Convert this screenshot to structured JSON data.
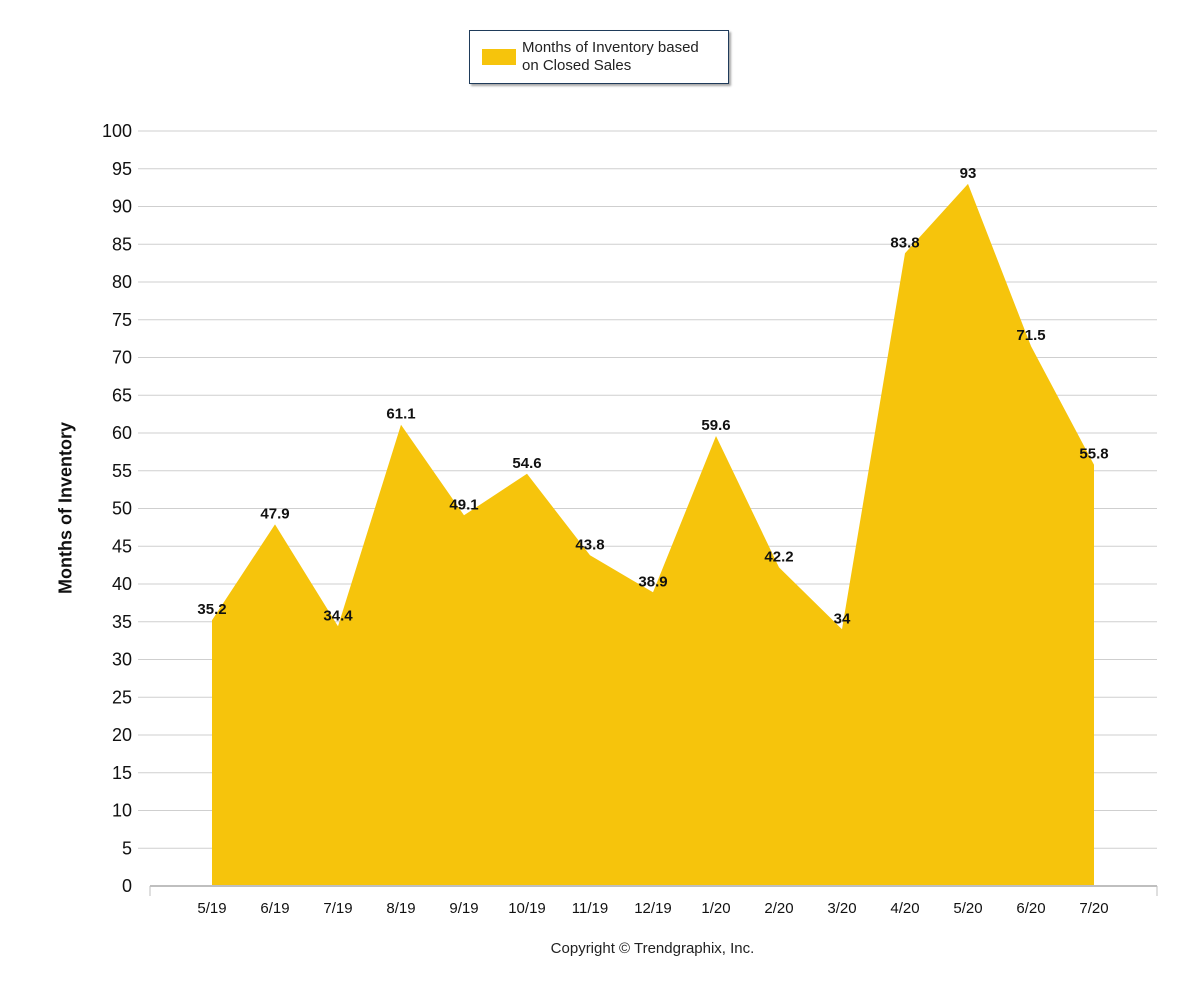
{
  "chart_data": {
    "type": "area",
    "categories": [
      "5/19",
      "6/19",
      "7/19",
      "8/19",
      "9/19",
      "10/19",
      "11/19",
      "12/19",
      "1/20",
      "2/20",
      "3/20",
      "4/20",
      "5/20",
      "6/20",
      "7/20"
    ],
    "series": [
      {
        "name": "Months of Inventory based on Closed Sales",
        "values": [
          35.2,
          47.9,
          34.4,
          61.1,
          49.1,
          54.6,
          43.8,
          38.9,
          59.6,
          42.2,
          34,
          83.8,
          93,
          71.5,
          55.8
        ],
        "color": "#f6c40c"
      }
    ],
    "title": "",
    "xlabel": "",
    "ylabel": "Months of Inventory",
    "ylim": [
      0,
      100
    ],
    "yticks": [
      0,
      5,
      10,
      15,
      20,
      25,
      30,
      35,
      40,
      45,
      50,
      55,
      60,
      65,
      70,
      75,
      80,
      85,
      90,
      95,
      100
    ],
    "grid": true,
    "legend_position": "top-center",
    "data_labels": true
  },
  "legend": {
    "label_line1": "Months of Inventory based",
    "label_line2": "on Closed Sales"
  },
  "footer": {
    "copyright": "Copyright © Trendgraphix, Inc."
  }
}
